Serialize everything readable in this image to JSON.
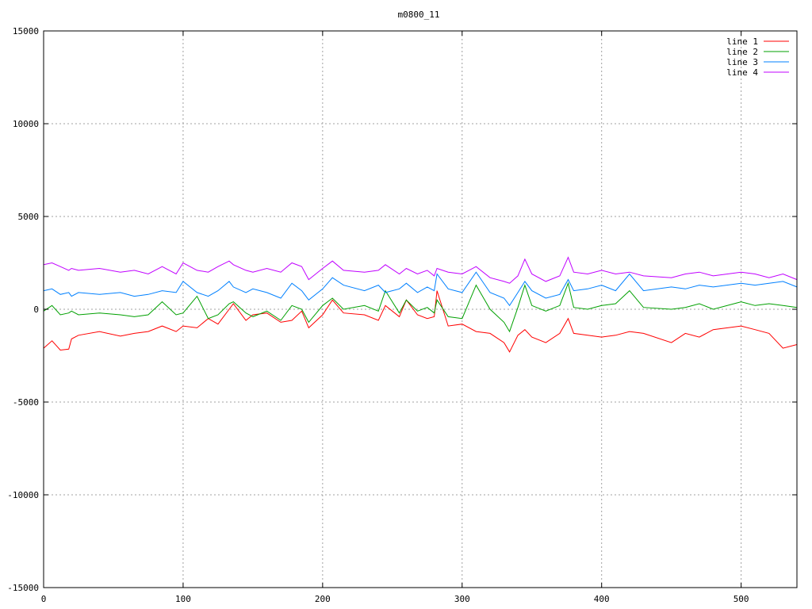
{
  "chart_data": {
    "type": "line",
    "title": "m0800_11",
    "xlabel": "",
    "ylabel": "",
    "xlim": [
      0,
      540
    ],
    "ylim": [
      -15000,
      15000
    ],
    "xticks": [
      0,
      100,
      200,
      300,
      400,
      500
    ],
    "yticks": [
      -15000,
      -10000,
      -5000,
      0,
      5000,
      10000,
      15000
    ],
    "grid": true,
    "legend_position": "top-right",
    "x": [
      0,
      6,
      12,
      18,
      20,
      25,
      40,
      55,
      65,
      75,
      85,
      95,
      100,
      110,
      118,
      125,
      133,
      136,
      145,
      150,
      160,
      170,
      178,
      185,
      190,
      200,
      207,
      215,
      230,
      240,
      245,
      255,
      260,
      268,
      275,
      280,
      282,
      290,
      300,
      310,
      320,
      330,
      334,
      340,
      345,
      350,
      360,
      370,
      376,
      380,
      390,
      400,
      410,
      420,
      430,
      450,
      460,
      470,
      480,
      500,
      510,
      520,
      530,
      540
    ],
    "series": [
      {
        "name": "line 1",
        "color": "#ff0000",
        "values": [
          -2100,
          -1700,
          -2200,
          -2150,
          -1600,
          -1400,
          -1200,
          -1450,
          -1300,
          -1200,
          -900,
          -1200,
          -900,
          -1000,
          -500,
          -800,
          0,
          300,
          -600,
          -300,
          -200,
          -700,
          -600,
          -100,
          -1000,
          -300,
          500,
          -200,
          -300,
          -600,
          200,
          -400,
          500,
          -300,
          -500,
          -400,
          1000,
          -900,
          -800,
          -1200,
          -1300,
          -1800,
          -2300,
          -1400,
          -1100,
          -1500,
          -1800,
          -1300,
          -500,
          -1300,
          -1400,
          -1500,
          -1400,
          -1200,
          -1300,
          -1800,
          -1300,
          -1500,
          -1100,
          -900,
          -1100,
          -1300,
          -2100,
          -1900
        ]
      },
      {
        "name": "line 2",
        "color": "#00a000",
        "values": [
          -100,
          200,
          -300,
          -200,
          -100,
          -300,
          -200,
          -300,
          -400,
          -300,
          400,
          -300,
          -200,
          700,
          -500,
          -300,
          300,
          400,
          -200,
          -400,
          -100,
          -600,
          200,
          0,
          -700,
          200,
          600,
          0,
          200,
          -100,
          1000,
          -200,
          500,
          -100,
          100,
          -200,
          500,
          -400,
          -500,
          1300,
          0,
          -700,
          -1200,
          100,
          1300,
          200,
          -100,
          200,
          1400,
          100,
          0,
          200,
          300,
          1000,
          100,
          0,
          100,
          300,
          0,
          400,
          200,
          300,
          200,
          100
        ]
      },
      {
        "name": "line 3",
        "color": "#0080ff",
        "values": [
          1000,
          1100,
          800,
          900,
          700,
          900,
          800,
          900,
          700,
          800,
          1000,
          900,
          1500,
          900,
          700,
          1000,
          1500,
          1200,
          900,
          1100,
          900,
          600,
          1400,
          1000,
          500,
          1100,
          1700,
          1300,
          1000,
          1300,
          900,
          1100,
          1400,
          900,
          1200,
          1000,
          1900,
          1100,
          900,
          2000,
          900,
          600,
          200,
          900,
          1500,
          1000,
          600,
          800,
          1600,
          1000,
          1100,
          1300,
          1000,
          1900,
          1000,
          1200,
          1100,
          1300,
          1200,
          1400,
          1300,
          1400,
          1500,
          1200
        ]
      },
      {
        "name": "line 4",
        "color": "#c000ff",
        "values": [
          2400,
          2500,
          2300,
          2100,
          2200,
          2100,
          2200,
          2000,
          2100,
          1900,
          2300,
          1900,
          2500,
          2100,
          2000,
          2300,
          2600,
          2400,
          2100,
          2000,
          2200,
          2000,
          2500,
          2300,
          1600,
          2200,
          2600,
          2100,
          2000,
          2100,
          2400,
          1900,
          2200,
          1900,
          2100,
          1800,
          2200,
          2000,
          1900,
          2300,
          1700,
          1500,
          1400,
          1800,
          2700,
          1900,
          1500,
          1800,
          2800,
          2000,
          1900,
          2100,
          1900,
          2000,
          1800,
          1700,
          1900,
          2000,
          1800,
          2000,
          1900,
          1700,
          1900,
          1600
        ]
      }
    ]
  }
}
